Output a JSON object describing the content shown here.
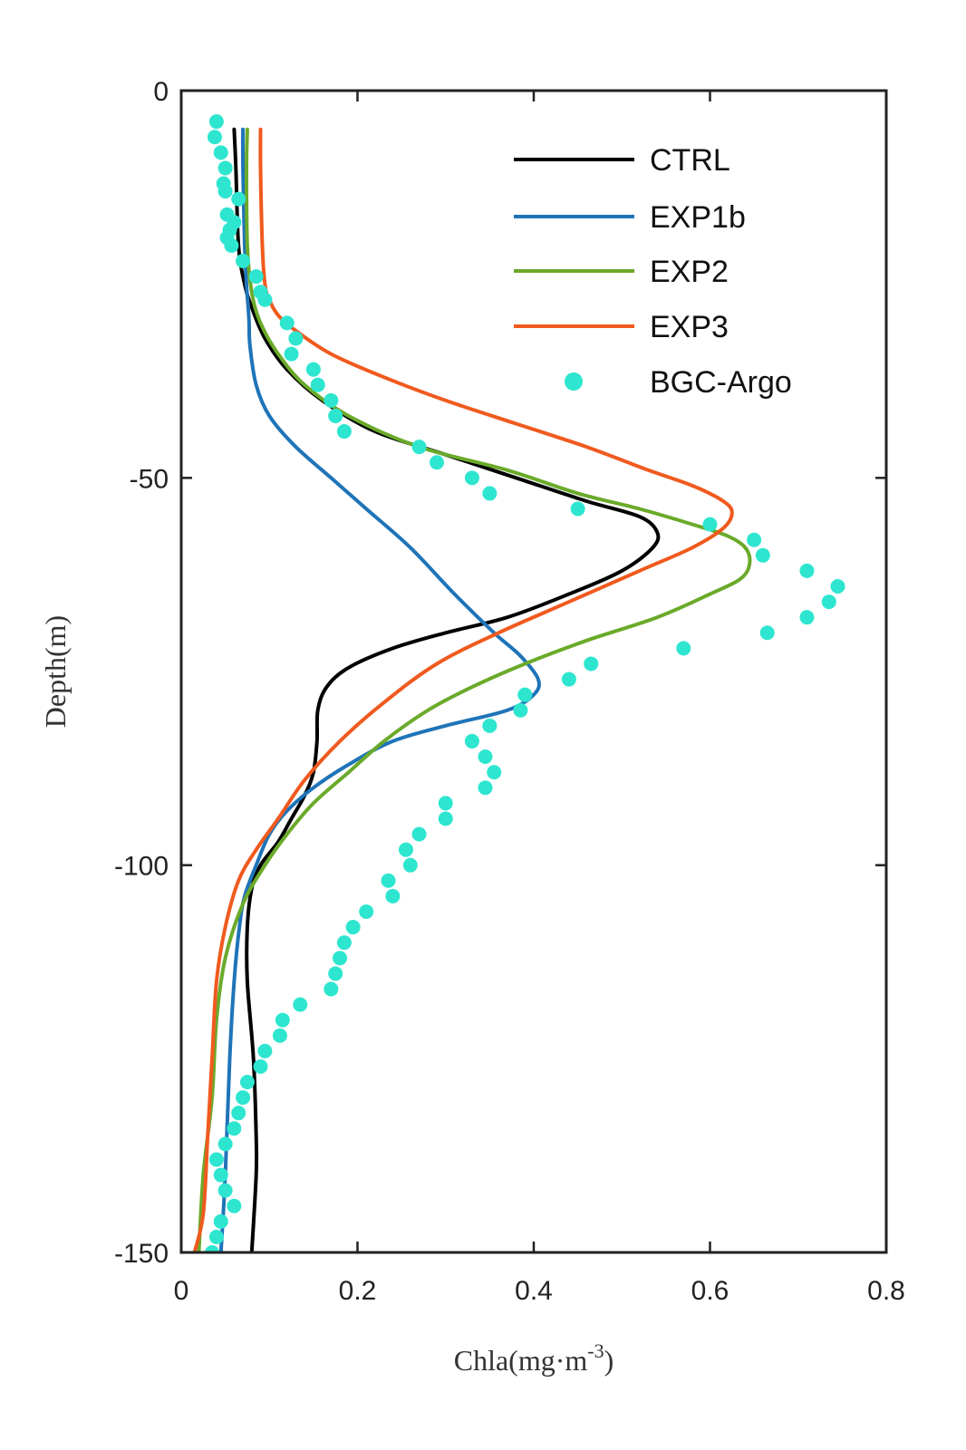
{
  "chart_data": {
    "type": "line",
    "xlabel": "Chla(mg·m",
    "xlabel_sup": "-3",
    "xlabel_close": ")",
    "ylabel": "Depth(m)",
    "xlim": [
      0,
      0.8
    ],
    "ylim": [
      -150,
      0
    ],
    "xticks": [
      0,
      0.2,
      0.4,
      0.6,
      0.8
    ],
    "xtick_labels": [
      "0",
      "0.2",
      "0.4",
      "0.6",
      "0.8"
    ],
    "yticks": [
      0,
      -50,
      -100,
      -150
    ],
    "ytick_labels": [
      "0",
      "-50",
      "-100",
      "-150"
    ],
    "legend_position": "top-right",
    "series": [
      {
        "name": "CTRL",
        "kind": "line",
        "color": "#000000",
        "width": 4,
        "points": [
          [
            0.06,
            -5
          ],
          [
            0.062,
            -10
          ],
          [
            0.065,
            -20
          ],
          [
            0.072,
            -25
          ],
          [
            0.08,
            -28
          ],
          [
            0.095,
            -32
          ],
          [
            0.12,
            -36
          ],
          [
            0.16,
            -40
          ],
          [
            0.22,
            -44
          ],
          [
            0.3,
            -47
          ],
          [
            0.38,
            -50
          ],
          [
            0.46,
            -53
          ],
          [
            0.52,
            -55
          ],
          [
            0.54,
            -57
          ],
          [
            0.535,
            -59
          ],
          [
            0.5,
            -62
          ],
          [
            0.44,
            -65
          ],
          [
            0.37,
            -68
          ],
          [
            0.3,
            -70
          ],
          [
            0.24,
            -72
          ],
          [
            0.19,
            -74.5
          ],
          [
            0.165,
            -77
          ],
          [
            0.155,
            -80
          ],
          [
            0.154,
            -84
          ],
          [
            0.15,
            -88
          ],
          [
            0.14,
            -91
          ],
          [
            0.125,
            -94
          ],
          [
            0.11,
            -97
          ],
          [
            0.09,
            -100
          ],
          [
            0.08,
            -103
          ],
          [
            0.075,
            -108
          ],
          [
            0.075,
            -115
          ],
          [
            0.082,
            -125
          ],
          [
            0.085,
            -135
          ],
          [
            0.085,
            -140
          ],
          [
            0.08,
            -150
          ]
        ]
      },
      {
        "name": "EXP1b",
        "kind": "line",
        "color": "#1f74b8",
        "width": 4,
        "points": [
          [
            0.07,
            -5
          ],
          [
            0.07,
            -10
          ],
          [
            0.072,
            -20
          ],
          [
            0.074,
            -25
          ],
          [
            0.076,
            -28
          ],
          [
            0.077,
            -30
          ],
          [
            0.078,
            -33
          ],
          [
            0.085,
            -38
          ],
          [
            0.1,
            -42
          ],
          [
            0.13,
            -46
          ],
          [
            0.17,
            -50
          ],
          [
            0.21,
            -54
          ],
          [
            0.26,
            -59
          ],
          [
            0.31,
            -65
          ],
          [
            0.355,
            -70
          ],
          [
            0.385,
            -73
          ],
          [
            0.405,
            -76
          ],
          [
            0.4,
            -78
          ],
          [
            0.37,
            -80
          ],
          [
            0.3,
            -82
          ],
          [
            0.24,
            -84
          ],
          [
            0.19,
            -87
          ],
          [
            0.15,
            -90
          ],
          [
            0.12,
            -93
          ],
          [
            0.1,
            -96
          ],
          [
            0.085,
            -100
          ],
          [
            0.072,
            -104
          ],
          [
            0.066,
            -108
          ],
          [
            0.06,
            -115
          ],
          [
            0.055,
            -125
          ],
          [
            0.05,
            -140
          ],
          [
            0.045,
            -150
          ]
        ]
      },
      {
        "name": "EXP2",
        "kind": "line",
        "color": "#6aaa2a",
        "width": 4,
        "points": [
          [
            0.075,
            -5
          ],
          [
            0.074,
            -10
          ],
          [
            0.075,
            -20
          ],
          [
            0.08,
            -26
          ],
          [
            0.09,
            -30
          ],
          [
            0.11,
            -34
          ],
          [
            0.14,
            -38
          ],
          [
            0.19,
            -42
          ],
          [
            0.27,
            -46
          ],
          [
            0.37,
            -49
          ],
          [
            0.45,
            -52
          ],
          [
            0.52,
            -54
          ],
          [
            0.58,
            -56
          ],
          [
            0.62,
            -57.5
          ],
          [
            0.64,
            -59
          ],
          [
            0.645,
            -61
          ],
          [
            0.635,
            -63
          ],
          [
            0.6,
            -65
          ],
          [
            0.54,
            -68
          ],
          [
            0.46,
            -71
          ],
          [
            0.39,
            -74
          ],
          [
            0.33,
            -77
          ],
          [
            0.28,
            -80
          ],
          [
            0.23,
            -84
          ],
          [
            0.19,
            -88
          ],
          [
            0.15,
            -92
          ],
          [
            0.12,
            -96
          ],
          [
            0.095,
            -100
          ],
          [
            0.07,
            -105
          ],
          [
            0.05,
            -112
          ],
          [
            0.04,
            -120
          ],
          [
            0.035,
            -130
          ],
          [
            0.025,
            -140
          ],
          [
            0.02,
            -150
          ]
        ]
      },
      {
        "name": "EXP3",
        "kind": "line",
        "color": "#f05a1e",
        "width": 4,
        "points": [
          [
            0.09,
            -5
          ],
          [
            0.09,
            -10
          ],
          [
            0.092,
            -20
          ],
          [
            0.095,
            -25
          ],
          [
            0.1,
            -27
          ],
          [
            0.11,
            -29
          ],
          [
            0.13,
            -31
          ],
          [
            0.17,
            -34
          ],
          [
            0.23,
            -37
          ],
          [
            0.3,
            -40
          ],
          [
            0.38,
            -43
          ],
          [
            0.46,
            -46
          ],
          [
            0.53,
            -49
          ],
          [
            0.58,
            -51
          ],
          [
            0.615,
            -53
          ],
          [
            0.625,
            -54.5
          ],
          [
            0.615,
            -56.5
          ],
          [
            0.58,
            -59
          ],
          [
            0.52,
            -62
          ],
          [
            0.44,
            -66
          ],
          [
            0.36,
            -70
          ],
          [
            0.29,
            -74
          ],
          [
            0.23,
            -79
          ],
          [
            0.18,
            -84
          ],
          [
            0.14,
            -89
          ],
          [
            0.11,
            -94
          ],
          [
            0.085,
            -98
          ],
          [
            0.065,
            -102
          ],
          [
            0.05,
            -108
          ],
          [
            0.04,
            -115
          ],
          [
            0.035,
            -125
          ],
          [
            0.03,
            -135
          ],
          [
            0.025,
            -145
          ],
          [
            0.015,
            -150
          ]
        ]
      },
      {
        "name": "BGC-Argo",
        "kind": "scatter",
        "color": "#2ee6d0",
        "points": [
          [
            0.04,
            -4
          ],
          [
            0.038,
            -6
          ],
          [
            0.045,
            -8
          ],
          [
            0.05,
            -10
          ],
          [
            0.048,
            -12
          ],
          [
            0.05,
            -13
          ],
          [
            0.065,
            -14
          ],
          [
            0.052,
            -16
          ],
          [
            0.06,
            -17
          ],
          [
            0.055,
            -18
          ],
          [
            0.052,
            -19
          ],
          [
            0.057,
            -20
          ],
          [
            0.07,
            -22
          ],
          [
            0.085,
            -24
          ],
          [
            0.09,
            -26
          ],
          [
            0.095,
            -27
          ],
          [
            0.12,
            -30
          ],
          [
            0.13,
            -32
          ],
          [
            0.125,
            -34
          ],
          [
            0.15,
            -36
          ],
          [
            0.155,
            -38
          ],
          [
            0.17,
            -40
          ],
          [
            0.175,
            -42
          ],
          [
            0.185,
            -44
          ],
          [
            0.27,
            -46
          ],
          [
            0.29,
            -48
          ],
          [
            0.33,
            -50
          ],
          [
            0.35,
            -52
          ],
          [
            0.45,
            -54
          ],
          [
            0.6,
            -56
          ],
          [
            0.65,
            -58
          ],
          [
            0.66,
            -60
          ],
          [
            0.71,
            -62
          ],
          [
            0.745,
            -64
          ],
          [
            0.735,
            -66
          ],
          [
            0.71,
            -68
          ],
          [
            0.665,
            -70
          ],
          [
            0.57,
            -72
          ],
          [
            0.465,
            -74
          ],
          [
            0.44,
            -76
          ],
          [
            0.39,
            -78
          ],
          [
            0.385,
            -80
          ],
          [
            0.35,
            -82
          ],
          [
            0.33,
            -84
          ],
          [
            0.345,
            -86
          ],
          [
            0.355,
            -88
          ],
          [
            0.345,
            -90
          ],
          [
            0.3,
            -92
          ],
          [
            0.3,
            -94
          ],
          [
            0.27,
            -96
          ],
          [
            0.255,
            -98
          ],
          [
            0.26,
            -100
          ],
          [
            0.235,
            -102
          ],
          [
            0.24,
            -104
          ],
          [
            0.21,
            -106
          ],
          [
            0.195,
            -108
          ],
          [
            0.185,
            -110
          ],
          [
            0.18,
            -112
          ],
          [
            0.175,
            -114
          ],
          [
            0.17,
            -116
          ],
          [
            0.135,
            -118
          ],
          [
            0.115,
            -120
          ],
          [
            0.112,
            -122
          ],
          [
            0.095,
            -124
          ],
          [
            0.09,
            -126
          ],
          [
            0.075,
            -128
          ],
          [
            0.07,
            -130
          ],
          [
            0.065,
            -132
          ],
          [
            0.06,
            -134
          ],
          [
            0.05,
            -136
          ],
          [
            0.04,
            -138
          ],
          [
            0.045,
            -140
          ],
          [
            0.05,
            -142
          ],
          [
            0.06,
            -144
          ],
          [
            0.045,
            -146
          ],
          [
            0.04,
            -148
          ],
          [
            0.035,
            -150
          ]
        ]
      }
    ]
  }
}
